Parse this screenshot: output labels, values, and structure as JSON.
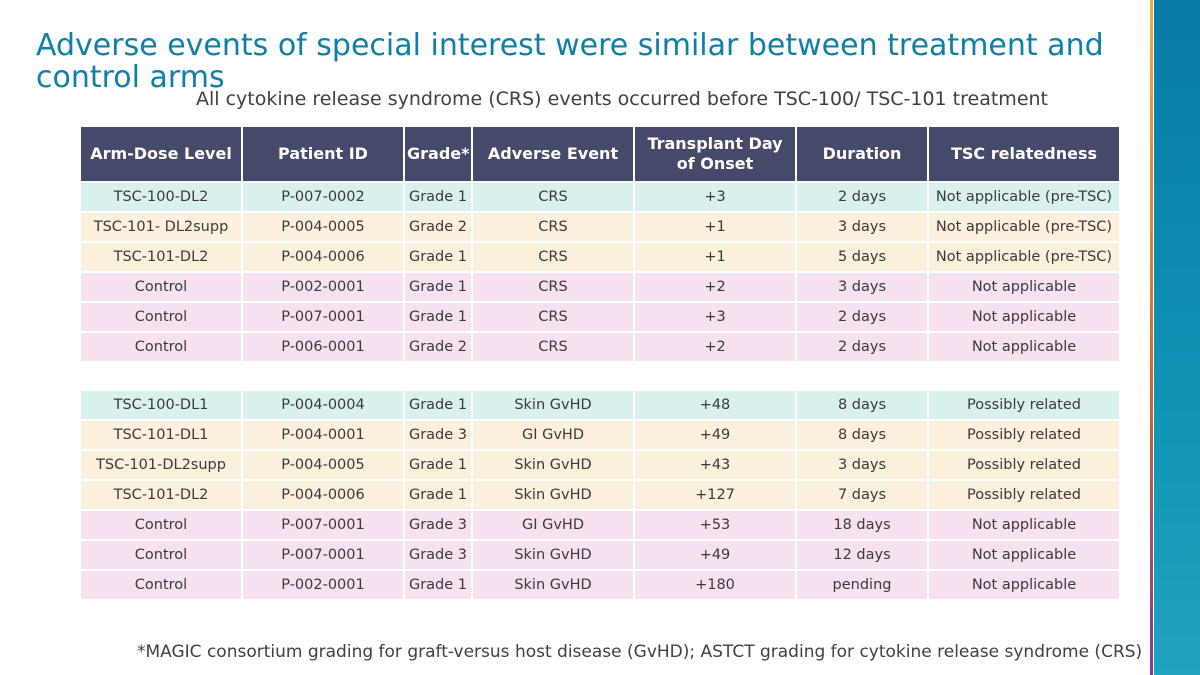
{
  "slide": {
    "title": "Adverse events of special interest were similar between treatment and control arms",
    "subtitle": "All cytokine release syndrome (CRS) events occurred before TSC-100/ TSC-101 treatment",
    "footnote": "*MAGIC consortium grading for graft-versus host disease (GvHD); ASTCT grading for cytokine release syndrome (CRS)"
  },
  "table": {
    "headers": [
      "Arm-Dose Level",
      "Patient ID",
      "Grade*",
      "Adverse Event",
      "Transplant Day of Onset",
      "Duration",
      "TSC relatedness"
    ],
    "crs_rows": [
      {
        "arm": "TSC-100-DL2",
        "patient": "P-007-0002",
        "grade": "Grade 1",
        "event": "CRS",
        "onset": "+3",
        "duration": "2 days",
        "relatedness": "Not applicable (pre-TSC)",
        "color": "teal"
      },
      {
        "arm": "TSC-101- DL2supp",
        "patient": "P-004-0005",
        "grade": "Grade 2",
        "event": "CRS",
        "onset": "+1",
        "duration": "3 days",
        "relatedness": "Not applicable (pre-TSC)",
        "color": "cream"
      },
      {
        "arm": "TSC-101-DL2",
        "patient": "P-004-0006",
        "grade": "Grade 1",
        "event": "CRS",
        "onset": "+1",
        "duration": "5 days",
        "relatedness": "Not applicable (pre-TSC)",
        "color": "cream"
      },
      {
        "arm": "Control",
        "patient": "P-002-0001",
        "grade": "Grade 1",
        "event": "CRS",
        "onset": "+2",
        "duration": "3 days",
        "relatedness": "Not applicable",
        "color": "pink"
      },
      {
        "arm": "Control",
        "patient": "P-007-0001",
        "grade": "Grade 1",
        "event": "CRS",
        "onset": "+3",
        "duration": "2 days",
        "relatedness": "Not applicable",
        "color": "pink"
      },
      {
        "arm": "Control",
        "patient": "P-006-0001",
        "grade": "Grade 2",
        "event": "CRS",
        "onset": "+2",
        "duration": "2 days",
        "relatedness": "Not applicable",
        "color": "pink"
      }
    ],
    "gvhd_rows": [
      {
        "arm": "TSC-100-DL1",
        "patient": "P-004-0004",
        "grade": "Grade 1",
        "event": "Skin GvHD",
        "onset": "+48",
        "duration": "8 days",
        "relatedness": "Possibly related",
        "color": "teal"
      },
      {
        "arm": "TSC-101-DL1",
        "patient": "P-004-0001",
        "grade": "Grade 3",
        "event": "GI GvHD",
        "onset": "+49",
        "duration": "8 days",
        "relatedness": "Possibly related",
        "color": "cream"
      },
      {
        "arm": "TSC-101-DL2supp",
        "patient": "P-004-0005",
        "grade": "Grade 1",
        "event": "Skin GvHD",
        "onset": "+43",
        "duration": "3 days",
        "relatedness": "Possibly related",
        "color": "cream"
      },
      {
        "arm": "TSC-101-DL2",
        "patient": "P-004-0006",
        "grade": "Grade 1",
        "event": "Skin GvHD",
        "onset": "+127",
        "duration": "7 days",
        "relatedness": "Possibly related",
        "color": "cream"
      },
      {
        "arm": "Control",
        "patient": "P-007-0001",
        "grade": "Grade 3",
        "event": "GI GvHD",
        "onset": "+53",
        "duration": "18 days",
        "relatedness": "Not applicable",
        "color": "pink"
      },
      {
        "arm": "Control",
        "patient": "P-007-0001",
        "grade": "Grade 3",
        "event": "Skin GvHD",
        "onset": "+49",
        "duration": "12 days",
        "relatedness": "Not applicable",
        "color": "pink"
      },
      {
        "arm": "Control",
        "patient": "P-002-0001",
        "grade": "Grade 1",
        "event": "Skin GvHD",
        "onset": "+180",
        "duration": "pending",
        "relatedness": "Not applicable",
        "color": "pink"
      }
    ]
  },
  "colors": {
    "title": "#0f7fa6",
    "header_bg": "#454a6a",
    "teal_row": "#d8f1ee",
    "cream_row": "#fbf0dc",
    "pink_row": "#f5e1ef"
  }
}
